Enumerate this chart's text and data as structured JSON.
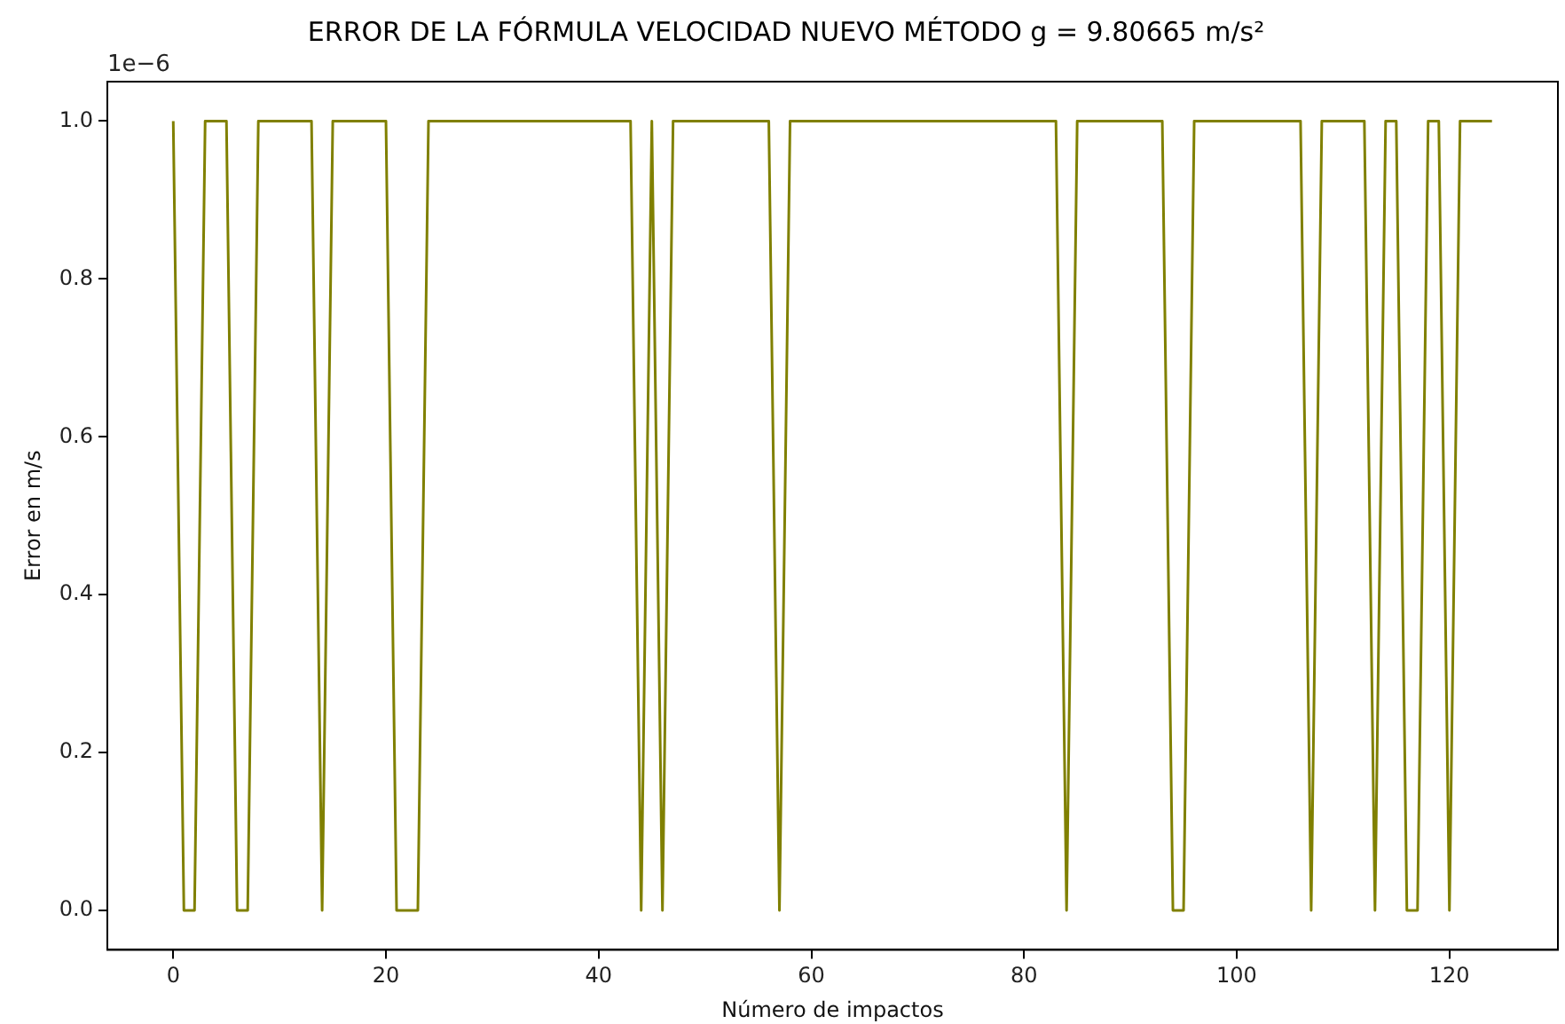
{
  "chart_data": {
    "type": "line",
    "title": "ERROR DE LA FÓRMULA VELOCIDAD NUEVO MÉTODO g = 9.80665 m/s²",
    "xlabel": "Número de impactos",
    "ylabel": "Error en m/s",
    "annotations": [
      "1e−6"
    ],
    "x": [
      0,
      1,
      2,
      3,
      4,
      5,
      6,
      7,
      8,
      9,
      10,
      11,
      12,
      13,
      14,
      15,
      16,
      17,
      18,
      19,
      20,
      21,
      22,
      23,
      24,
      25,
      26,
      27,
      28,
      29,
      30,
      31,
      32,
      33,
      34,
      35,
      36,
      37,
      38,
      39,
      40,
      41,
      42,
      43,
      44,
      45,
      46,
      47,
      48,
      49,
      50,
      51,
      52,
      53,
      54,
      55,
      56,
      57,
      58,
      59,
      60,
      61,
      62,
      63,
      64,
      65,
      66,
      67,
      68,
      69,
      70,
      71,
      72,
      73,
      74,
      75,
      76,
      77,
      78,
      79,
      80,
      81,
      82,
      83,
      84,
      85,
      86,
      87,
      88,
      89,
      90,
      91,
      92,
      93,
      94,
      95,
      96,
      97,
      98,
      99,
      100,
      101,
      102,
      103,
      104,
      105,
      106,
      107,
      108,
      109,
      110,
      111,
      112,
      113,
      114,
      115,
      116,
      117,
      118,
      119,
      120,
      121,
      122,
      123,
      124
    ],
    "series": [
      {
        "color": "#808000",
        "values": [
          1,
          0,
          0,
          1,
          1,
          1,
          0,
          0,
          1,
          1,
          1,
          1,
          1,
          1,
          0,
          1,
          1,
          1,
          1,
          1,
          1,
          0,
          0,
          0,
          1,
          1,
          1,
          1,
          1,
          1,
          1,
          1,
          1,
          1,
          1,
          1,
          1,
          1,
          1,
          1,
          1,
          1,
          1,
          1,
          0,
          1,
          0,
          1,
          1,
          1,
          1,
          1,
          1,
          1,
          1,
          1,
          1,
          0,
          1,
          1,
          1,
          1,
          1,
          1,
          1,
          1,
          1,
          1,
          1,
          1,
          1,
          1,
          1,
          1,
          1,
          1,
          1,
          1,
          1,
          1,
          1,
          1,
          1,
          1,
          0,
          1,
          1,
          1,
          1,
          1,
          1,
          1,
          1,
          1,
          0,
          0,
          1,
          1,
          1,
          1,
          1,
          1,
          1,
          1,
          1,
          1,
          1,
          0,
          1,
          1,
          1,
          1,
          1,
          0,
          1,
          1,
          0,
          0,
          1,
          1,
          0,
          1,
          1,
          1,
          1
        ]
      }
    ],
    "xlim": [
      -6.2,
      130.2
    ],
    "xticks": [
      0,
      20,
      40,
      60,
      80,
      100,
      120
    ],
    "ylim": [
      -0.05,
      1.05
    ],
    "yticks": [
      {
        "value": 0,
        "label": "0.0"
      },
      {
        "value": 0.2,
        "label": "0.2"
      },
      {
        "value": 0.4,
        "label": "0.4"
      },
      {
        "value": 0.6,
        "label": "0.6"
      },
      {
        "value": 0.8,
        "label": "0.8"
      },
      {
        "value": 1,
        "label": "1.0"
      }
    ],
    "grid": false,
    "legend": false,
    "marker": "none",
    "line_style": "solid"
  }
}
